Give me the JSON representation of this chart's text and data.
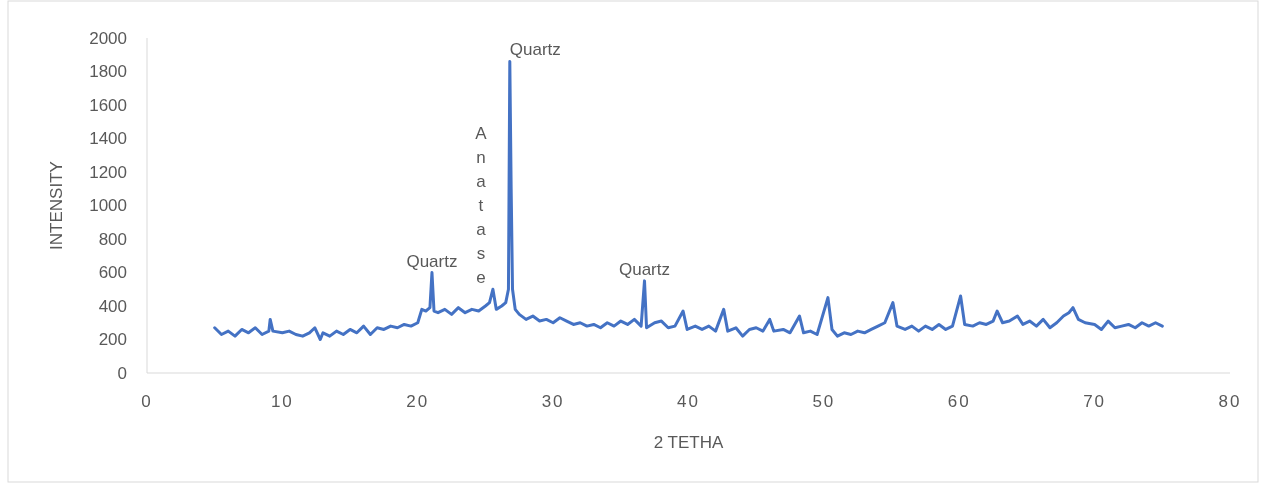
{
  "chart_data": {
    "type": "line",
    "xlabel": "2 TETHA",
    "ylabel": "INTENSITY",
    "xlim": [
      0,
      80
    ],
    "xticks": [
      0,
      10,
      20,
      30,
      40,
      50,
      60,
      70,
      80
    ],
    "ylim": [
      0,
      2000
    ],
    "yticks": [
      0,
      200,
      400,
      600,
      800,
      1000,
      1200,
      1400,
      1600,
      1800,
      2000
    ],
    "annotations": [
      {
        "text": "Quartz",
        "x": 21.05,
        "y": 600
      },
      {
        "text": "Anatase",
        "x": 25.55,
        "y": 500
      },
      {
        "text": "Quartz",
        "x": 26.8,
        "y": 1860
      },
      {
        "text": "Quartz",
        "x": 36.75,
        "y": 550
      }
    ],
    "series": [
      {
        "color": "#4472c4",
        "x": [
          5,
          5.5,
          6,
          6.5,
          7,
          7.5,
          8,
          8.5,
          9,
          9.1,
          9.3,
          10,
          10.5,
          11,
          11.5,
          12,
          12.4,
          12.8,
          13,
          13.5,
          14,
          14.5,
          15,
          15.5,
          16,
          16.5,
          17,
          17.5,
          18,
          18.5,
          19,
          19.5,
          20,
          20.3,
          20.6,
          20.9,
          21.05,
          21.2,
          21.5,
          22,
          22.5,
          23,
          23.5,
          24,
          24.5,
          25,
          25.3,
          25.55,
          25.8,
          26.2,
          26.5,
          26.7,
          26.8,
          26.9,
          27.0,
          27.2,
          27.5,
          28,
          28.5,
          29,
          29.5,
          30,
          30.5,
          31,
          31.5,
          32,
          32.5,
          33,
          33.5,
          34,
          34.5,
          35,
          35.5,
          36,
          36.5,
          36.75,
          36.9,
          37.5,
          38,
          38.5,
          39,
          39.6,
          39.9,
          40.5,
          41,
          41.5,
          42,
          42.6,
          42.9,
          43.5,
          44,
          44.5,
          45,
          45.5,
          46,
          46.3,
          47,
          47.5,
          48.2,
          48.5,
          49,
          49.5,
          50.3,
          50.6,
          51,
          51.5,
          52,
          52.5,
          53,
          53.5,
          54,
          54.5,
          55.1,
          55.4,
          56,
          56.5,
          57,
          57.5,
          58,
          58.5,
          59,
          59.5,
          60.1,
          60.4,
          61,
          61.5,
          62,
          62.5,
          62.8,
          63.2,
          63.7,
          64.3,
          64.7,
          65.2,
          65.7,
          66.2,
          66.7,
          67.2,
          67.7,
          68.1,
          68.4,
          68.8,
          69.3,
          70,
          70.5,
          71,
          71.5,
          72,
          72.5,
          73,
          73.5,
          74,
          74.5,
          75
        ],
        "values": [
          270,
          230,
          250,
          220,
          260,
          240,
          270,
          230,
          250,
          320,
          250,
          240,
          250,
          230,
          220,
          240,
          270,
          200,
          240,
          220,
          250,
          230,
          260,
          240,
          280,
          230,
          270,
          260,
          280,
          270,
          290,
          280,
          300,
          380,
          370,
          390,
          600,
          370,
          360,
          380,
          350,
          390,
          360,
          380,
          370,
          400,
          420,
          500,
          380,
          400,
          420,
          500,
          1860,
          1100,
          500,
          380,
          350,
          320,
          340,
          310,
          320,
          300,
          330,
          310,
          290,
          300,
          280,
          290,
          270,
          300,
          280,
          310,
          290,
          320,
          280,
          550,
          270,
          300,
          310,
          270,
          280,
          370,
          260,
          280,
          260,
          280,
          250,
          380,
          250,
          270,
          220,
          260,
          270,
          250,
          320,
          250,
          260,
          240,
          340,
          240,
          250,
          230,
          450,
          260,
          220,
          240,
          230,
          250,
          240,
          260,
          280,
          300,
          420,
          280,
          260,
          280,
          250,
          280,
          260,
          290,
          260,
          280,
          460,
          290,
          280,
          300,
          290,
          310,
          370,
          300,
          310,
          340,
          290,
          310,
          280,
          320,
          270,
          300,
          340,
          360,
          390,
          320,
          300,
          290,
          260,
          310,
          270,
          280,
          290,
          270,
          300,
          280,
          300,
          280
        ]
      }
    ]
  }
}
